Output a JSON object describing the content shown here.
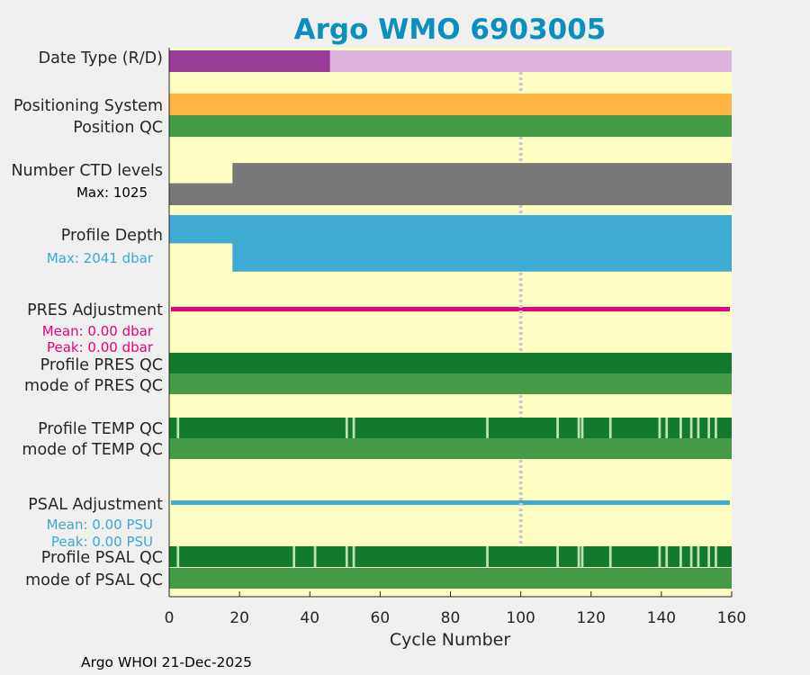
{
  "footer": "Argo WHOI 21-Dec-2025",
  "colors": {
    "background": "#ffffc4",
    "title": "#0a8fbf",
    "pressure": "#e6007e",
    "salinity": "#3ea9d1",
    "gray_bar": "#787878",
    "qc_dark_green": "#137a2c",
    "qc_green": "#469b46",
    "qc_light": "#bfe3b0",
    "date_real": "#993d99",
    "date_delayed": "#dcb4dc",
    "positioning": "#ffb444",
    "ref_line": "#c8c8d2"
  },
  "chart_data": {
    "type": "status-timeline",
    "title": "Argo WMO 6903005",
    "xlabel": "Cycle Number",
    "xlim": [
      0,
      160
    ],
    "xticks": [
      0,
      20,
      40,
      60,
      80,
      100,
      120,
      140,
      160
    ],
    "reference_cycle": 100,
    "last_cycle": 159,
    "rows": [
      {
        "id": "date-type",
        "label": "Date Type (R/D)",
        "real_time_until_cycle": 45
      },
      {
        "id": "positioning",
        "label": "Positioning System"
      },
      {
        "id": "position-qc",
        "label": "Position QC"
      },
      {
        "id": "ctd-levels",
        "label": "Number CTD levels",
        "note": "Max: 1025",
        "max": 1025,
        "early_cycles_end": 18,
        "early_value": 520,
        "late_value": 1000
      },
      {
        "id": "profile-depth",
        "label": "Profile Depth",
        "note": "Max: 2041 dbar",
        "max": 2041,
        "early_cycles_end": 18,
        "early_value": 1000,
        "late_value": 2000
      },
      {
        "id": "pres-adjustment",
        "label": "PRES Adjustment",
        "notes": [
          "Mean: 0.00 dbar",
          "Peak: 0.00 dbar"
        ]
      },
      {
        "id": "profile-pres-qc",
        "label": "Profile PRES QC"
      },
      {
        "id": "mode-pres-qc",
        "label": "mode of PRES QC"
      },
      {
        "id": "profile-temp-qc",
        "label": "Profile TEMP QC",
        "flagged_cycles": [
          2,
          50,
          52,
          90,
          110,
          116,
          117,
          125,
          139,
          141,
          145,
          148,
          150,
          153,
          155
        ]
      },
      {
        "id": "mode-temp-qc",
        "label": "mode of TEMP QC"
      },
      {
        "id": "psal-adjustment",
        "label": "PSAL Adjustment",
        "notes": [
          "Mean: 0.00 PSU",
          "Peak: 0.00 PSU"
        ]
      },
      {
        "id": "profile-psal-qc",
        "label": "Profile PSAL QC",
        "flagged_cycles": [
          2,
          35,
          41,
          50,
          52,
          90,
          110,
          116,
          117,
          125,
          139,
          141,
          145,
          148,
          150,
          153,
          155
        ]
      },
      {
        "id": "mode-psal-qc",
        "label": "mode of PSAL QC"
      }
    ]
  }
}
